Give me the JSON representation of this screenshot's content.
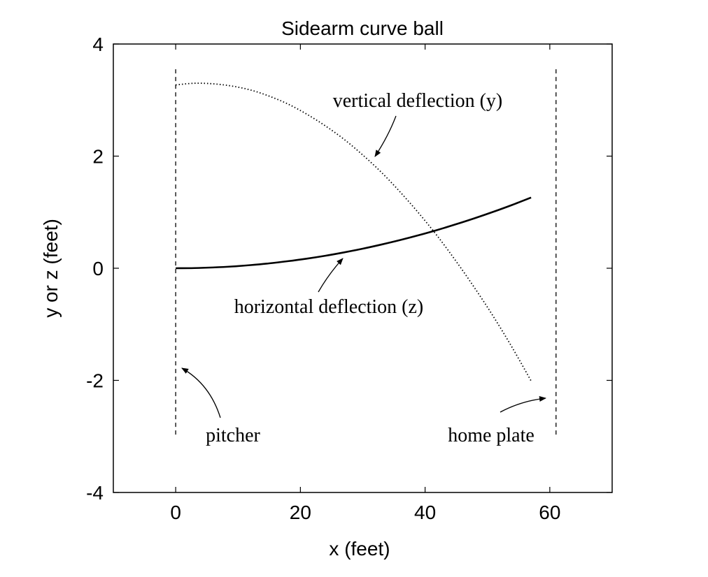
{
  "chart_data": {
    "type": "line",
    "title": "Sidearm curve ball",
    "xlabel": "x (feet)",
    "ylabel": "y or z (feet)",
    "xlim": [
      -10,
      70
    ],
    "ylim": [
      -4,
      4
    ],
    "xticks": [
      0,
      20,
      40,
      60
    ],
    "yticks": [
      -4,
      -2,
      0,
      2,
      4
    ],
    "grid": false,
    "legend": "none",
    "series": [
      {
        "name": "vertical deflection (y)",
        "style": "dotted",
        "x": [
          0,
          3,
          6,
          9,
          12,
          15,
          18,
          21,
          24,
          27,
          30,
          33,
          36,
          39,
          42,
          45,
          48,
          51,
          54,
          57
        ],
        "y": [
          3.27,
          3.3,
          3.29,
          3.25,
          3.18,
          3.07,
          2.93,
          2.75,
          2.54,
          2.3,
          2.02,
          1.71,
          1.36,
          0.98,
          0.57,
          0.12,
          -0.36,
          -0.87,
          -1.42,
          -2.01
        ]
      },
      {
        "name": "horizontal deflection (z)",
        "style": "solid",
        "x": [
          0,
          3,
          6,
          9,
          12,
          15,
          18,
          21,
          24,
          27,
          30,
          33,
          36,
          39,
          42,
          45,
          48,
          51,
          54,
          57
        ],
        "y": [
          0,
          0.003,
          0.014,
          0.031,
          0.056,
          0.087,
          0.126,
          0.171,
          0.223,
          0.283,
          0.349,
          0.423,
          0.503,
          0.59,
          0.684,
          0.786,
          0.894,
          1.009,
          1.131,
          1.261
        ]
      }
    ],
    "reference_lines": [
      {
        "label": "pitcher",
        "x": 0,
        "y_range": [
          -3.0,
          3.55
        ],
        "style": "dashed"
      },
      {
        "label": "home plate",
        "x": 61,
        "y_range": [
          -3.0,
          3.55
        ],
        "style": "dashed"
      }
    ],
    "annotations": [
      "vertical deflection (y)",
      "horizontal deflection (z)",
      "pitcher",
      "home plate"
    ]
  }
}
